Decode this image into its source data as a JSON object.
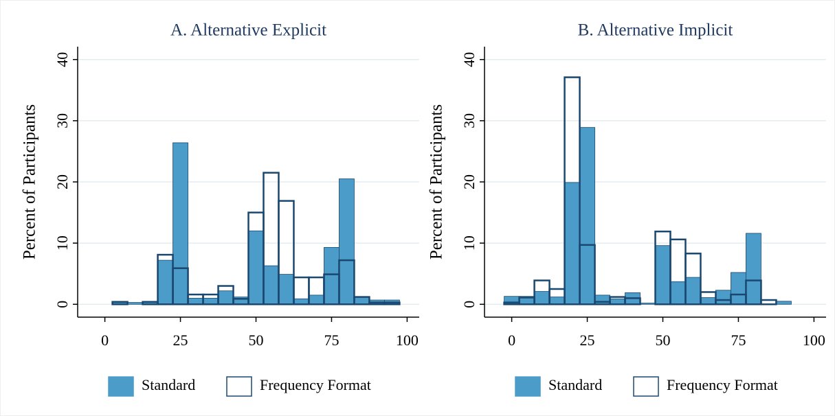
{
  "chart_data": [
    {
      "type": "histogram",
      "title": "A. Alternative Explicit",
      "ylabel": "Percent of Participants",
      "bins": [
        2.5,
        7.5,
        12.5,
        17.5,
        22.5,
        27.5,
        32.5,
        37.5,
        42.5,
        47.5,
        52.5,
        57.5,
        62.5,
        67.5,
        72.5,
        77.5,
        82.5,
        87.5,
        92.5,
        97.5
      ],
      "edgecolor": "#1a476f",
      "series": [
        {
          "name": "Standard",
          "color": "#4b9cc9",
          "values": [
            0.3,
            0.3,
            0.4,
            7.2,
            26.4,
            1.0,
            1.0,
            2.2,
            1.2,
            12.0,
            6.3,
            4.9,
            0.9,
            1.5,
            9.3,
            20.5,
            1.2,
            0.7,
            0.7
          ]
        },
        {
          "name": "Frequency Format",
          "color": "#ffffff",
          "values": [
            0.4,
            0,
            0.4,
            8.1,
            5.9,
            1.6,
            1.6,
            3.0,
            0.9,
            15.0,
            21.5,
            16.9,
            4.4,
            4.4,
            4.9,
            7.2,
            1.2,
            0.3,
            0.3
          ]
        }
      ],
      "xlim": [
        -9,
        104
      ],
      "xticks": [
        0,
        25,
        50,
        75,
        100
      ],
      "ylim": [
        -2.1,
        42.1
      ],
      "yticks": [
        0,
        10,
        20,
        30,
        40
      ],
      "grid": true
    },
    {
      "type": "histogram",
      "title": "B. Alternative Implicit",
      "ylabel": "Percent of Participants",
      "bins": [
        -2.5,
        2.5,
        7.5,
        12.5,
        17.5,
        22.5,
        27.5,
        32.5,
        37.5,
        42.5,
        47.5,
        52.5,
        57.5,
        62.5,
        67.5,
        72.5,
        77.5,
        82.5,
        87.5,
        92.5
      ],
      "edgecolor": "#1a476f",
      "series": [
        {
          "name": "Standard",
          "color": "#4b9cc9",
          "values": [
            1.3,
            1.3,
            2.1,
            1.2,
            19.9,
            28.9,
            1.5,
            0.9,
            1.9,
            0.2,
            9.6,
            3.7,
            4.4,
            1.1,
            2.3,
            5.2,
            11.6,
            0,
            0.5
          ]
        },
        {
          "name": "Frequency Format",
          "color": "#ffffff",
          "values": [
            0.3,
            1.1,
            3.9,
            2.5,
            37.1,
            9.7,
            0.4,
            1.2,
            1.0,
            0,
            11.9,
            10.6,
            8.3,
            2.0,
            0.7,
            1.6,
            3.9,
            0.7,
            0
          ]
        }
      ],
      "xlim": [
        -9,
        104
      ],
      "xticks": [
        0,
        25,
        50,
        75,
        100
      ],
      "ylim": [
        -2.1,
        42.1
      ],
      "yticks": [
        0,
        10,
        20,
        30,
        40
      ],
      "grid": true
    }
  ]
}
